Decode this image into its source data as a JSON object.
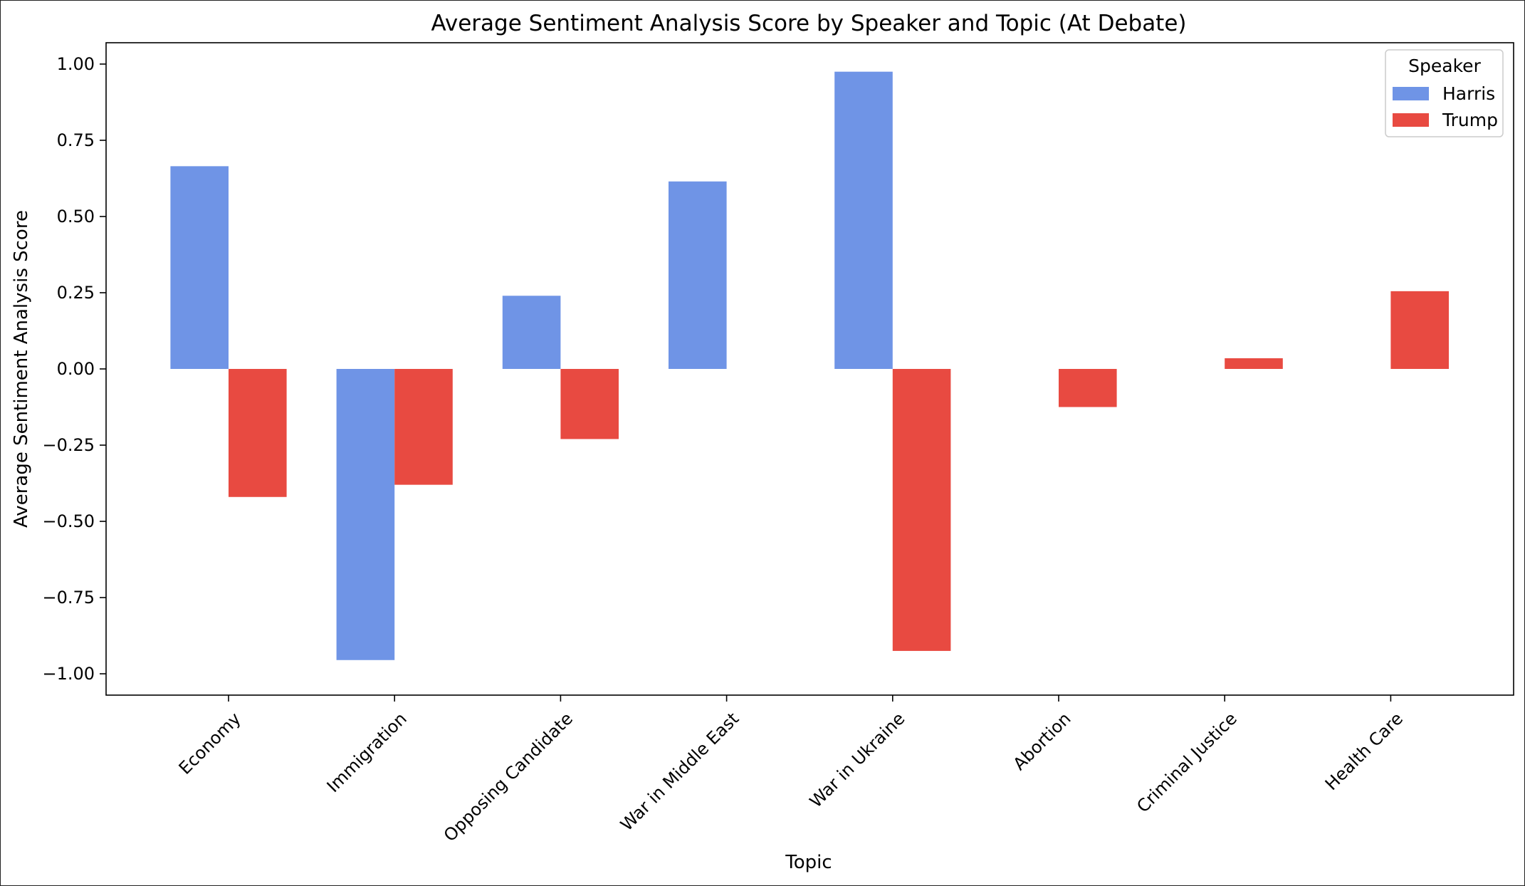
{
  "chart_data": {
    "type": "bar",
    "title": "Average Sentiment Analysis Score by Speaker and Topic (At Debate)",
    "xlabel": "Topic",
    "ylabel": "Average Sentiment Analysis Score",
    "categories": [
      "Economy",
      "Immigration",
      "Opposing Candidate",
      "War in Middle East",
      "War in Ukraine",
      "Abortion",
      "Criminal Justice",
      "Health Care"
    ],
    "series": [
      {
        "name": "Harris",
        "color": "#6f94e6",
        "values": [
          0.665,
          -0.955,
          0.24,
          0.615,
          0.975,
          null,
          null,
          null
        ]
      },
      {
        "name": "Trump",
        "color": "#e84a41",
        "values": [
          -0.42,
          -0.38,
          -0.23,
          null,
          -0.925,
          -0.125,
          0.035,
          0.255
        ]
      }
    ],
    "ylim": [
      -1.07,
      1.07
    ],
    "yticks": [
      -1.0,
      -0.75,
      -0.5,
      -0.25,
      0.0,
      0.25,
      0.5,
      0.75,
      1.0
    ],
    "ytick_labels": [
      "−1.00",
      "−0.75",
      "−0.50",
      "−0.25",
      "0.00",
      "0.25",
      "0.50",
      "0.75",
      "1.00"
    ],
    "grid": false,
    "legend": {
      "title": "Speaker",
      "placement": "top-right"
    }
  }
}
